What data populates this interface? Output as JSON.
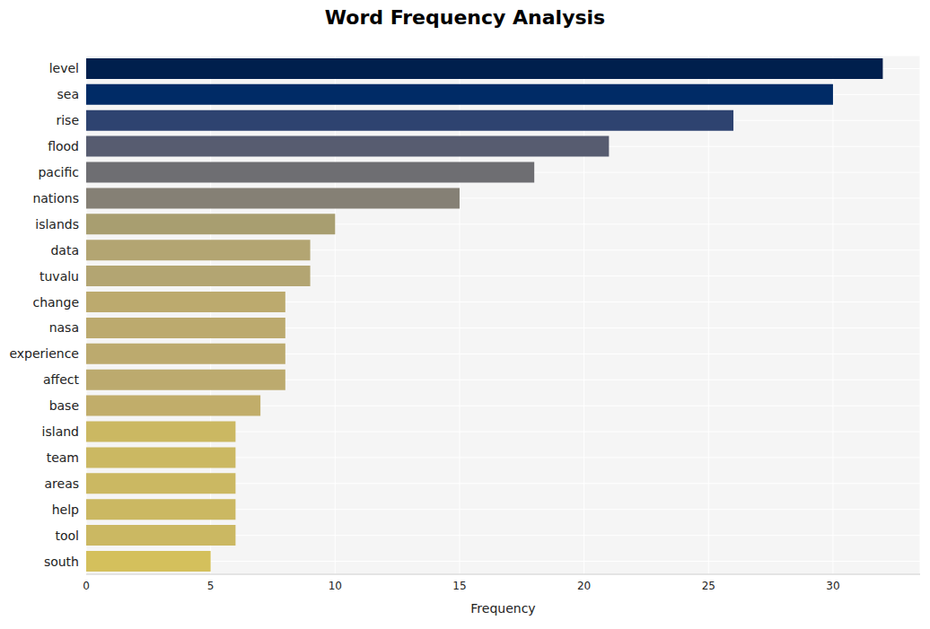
{
  "chart_data": {
    "type": "bar",
    "title": "Word Frequency Analysis",
    "orientation": "horizontal",
    "x_label": "Frequency",
    "categories": [
      "level",
      "sea",
      "rise",
      "flood",
      "pacific",
      "nations",
      "islands",
      "data",
      "tuvalu",
      "change",
      "nasa",
      "experience",
      "affect",
      "base",
      "island",
      "team",
      "areas",
      "help",
      "tool",
      "south"
    ],
    "values": [
      32,
      30,
      26,
      21,
      18,
      15,
      10,
      9,
      9,
      8,
      8,
      8,
      8,
      7,
      6,
      6,
      6,
      6,
      6,
      5
    ],
    "colors": [
      "#001f4d",
      "#002b66",
      "#2e4370",
      "#575c70",
      "#6e6e72",
      "#858075",
      "#a89e70",
      "#b3a572",
      "#b3a572",
      "#bcaa6e",
      "#bcaa6e",
      "#bcaa6e",
      "#bcaa6e",
      "#c1ad6a",
      "#cbb862",
      "#cbb862",
      "#cbb862",
      "#cbb862",
      "#cbb862",
      "#d4c05c"
    ],
    "xlim": [
      0,
      33.5
    ],
    "xticks": [
      0,
      5,
      10,
      15,
      20,
      25,
      30
    ],
    "grid": true
  }
}
